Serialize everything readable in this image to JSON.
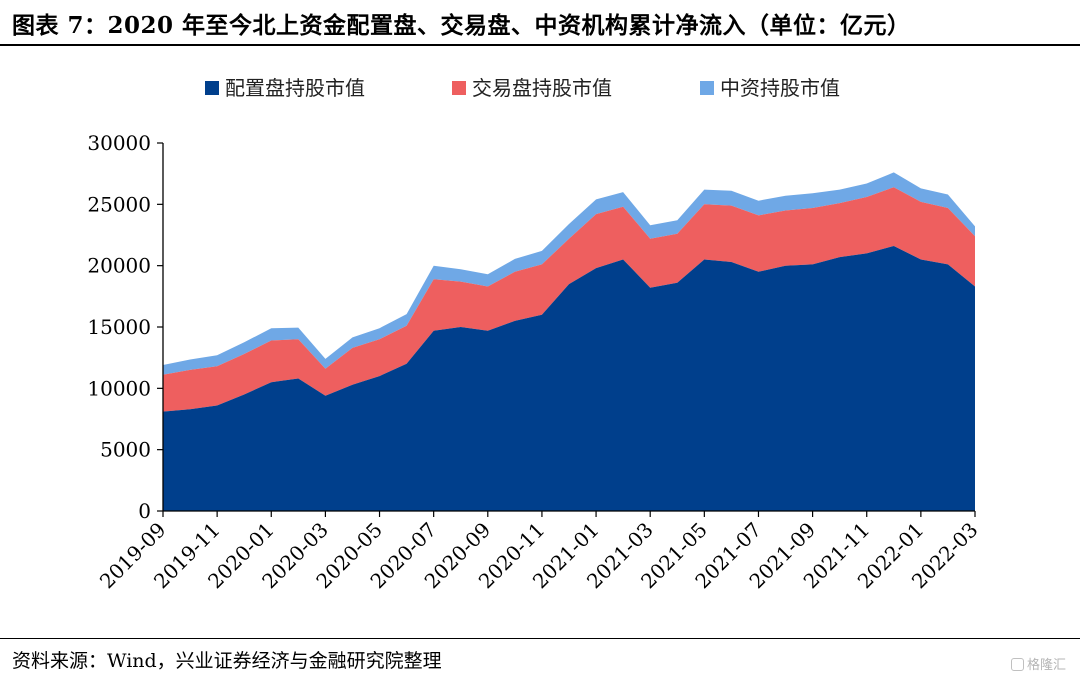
{
  "figure": {
    "title": "图表 7：2020 年至今北上资金配置盘、交易盘、中资机构累计净流入（单位：亿元）",
    "source": "资料来源：Wind，兴业证券经济与金融研究院整理",
    "watermark": "格隆汇"
  },
  "chart_data": {
    "type": "area",
    "stacked": true,
    "title": "",
    "xlabel": "",
    "ylabel": "",
    "ylim": [
      0,
      30000
    ],
    "yticks": [
      0,
      5000,
      10000,
      15000,
      20000,
      25000,
      30000
    ],
    "xlim": [
      "2019-09",
      "2022-03"
    ],
    "xticks": [
      "2019-09",
      "2019-11",
      "2020-01",
      "2020-03",
      "2020-05",
      "2020-07",
      "2020-09",
      "2020-11",
      "2021-01",
      "2021-03",
      "2021-05",
      "2021-07",
      "2021-09",
      "2021-11",
      "2022-01",
      "2022-03"
    ],
    "legend_position": "top",
    "grid": false,
    "x": [
      "2019-09",
      "2019-10",
      "2019-11",
      "2019-12",
      "2020-01",
      "2020-02",
      "2020-03",
      "2020-04",
      "2020-05",
      "2020-06",
      "2020-07",
      "2020-08",
      "2020-09",
      "2020-10",
      "2020-11",
      "2020-12",
      "2021-01",
      "2021-02",
      "2021-03",
      "2021-04",
      "2021-05",
      "2021-06",
      "2021-07",
      "2021-08",
      "2021-09",
      "2021-10",
      "2021-11",
      "2021-12",
      "2022-01",
      "2022-02",
      "2022-03"
    ],
    "series": [
      {
        "name": "配置盘持股市值",
        "color": "#003F8C",
        "values": [
          8100,
          8300,
          8600,
          9500,
          10500,
          10800,
          9400,
          10300,
          11000,
          12000,
          14700,
          15000,
          14700,
          15500,
          16000,
          18500,
          19800,
          20500,
          18200,
          18600,
          20500,
          20300,
          19500,
          20000,
          20100,
          20700,
          21000,
          21600,
          20500,
          20100,
          18300
        ]
      },
      {
        "name": "交易盘持股市值",
        "color": "#EE5F5F",
        "values": [
          3000,
          3200,
          3200,
          3300,
          3400,
          3200,
          2200,
          3000,
          3000,
          3100,
          4200,
          3700,
          3600,
          4000,
          4100,
          3700,
          4400,
          4300,
          4000,
          4000,
          4500,
          4600,
          4600,
          4500,
          4600,
          4400,
          4600,
          4800,
          4700,
          4600,
          4100
        ]
      },
      {
        "name": "中资持股市值",
        "color": "#6FA8E6",
        "values": [
          800,
          850,
          900,
          950,
          1000,
          950,
          800,
          850,
          900,
          950,
          1100,
          1000,
          1000,
          1050,
          1100,
          1200,
          1200,
          1200,
          1100,
          1100,
          1200,
          1200,
          1200,
          1200,
          1200,
          1100,
          1100,
          1200,
          1100,
          1100,
          800
        ]
      }
    ]
  }
}
